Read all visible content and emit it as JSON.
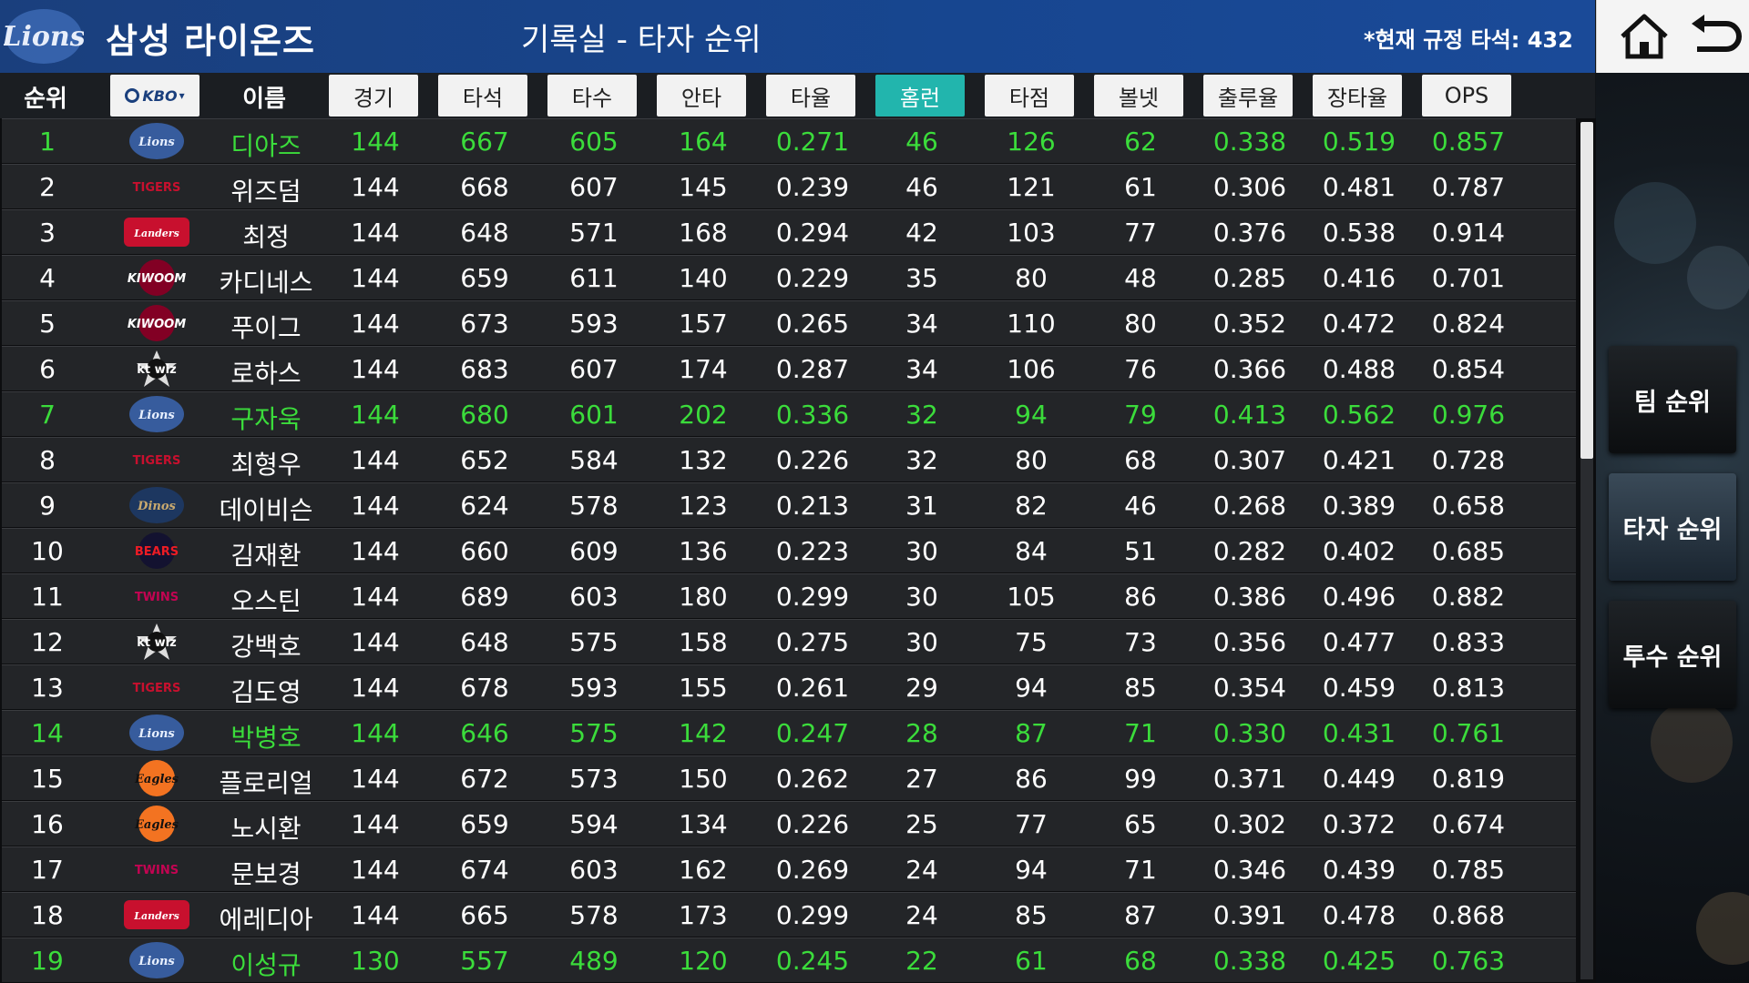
{
  "app": {
    "team_name": "삼성 라이온즈",
    "page_title": "기록실 - 타자 순위",
    "qualify_label": "*현재 규정 타석: 432"
  },
  "nav": {
    "home_icon": "home-icon",
    "back_icon": "back-arrow-icon",
    "side_buttons": [
      "팀 순위",
      "타자 순위",
      "투수 순위"
    ],
    "active_side": "타자 순위"
  },
  "columns": {
    "rank": "순위",
    "team_filter": "KBO",
    "name": "이름",
    "stats": [
      "경기",
      "타석",
      "타수",
      "안타",
      "타율",
      "홈런",
      "타점",
      "볼넷",
      "출루율",
      "장타율",
      "OPS"
    ],
    "active_sort": "홈런"
  },
  "colors": {
    "header_blue": "#1a4a98",
    "active_column": "#22b5ad",
    "own_team_text": "#3bdc3b"
  },
  "rows": [
    {
      "rank": "1",
      "team": "lions",
      "name": "디아즈",
      "games": "144",
      "pa": "667",
      "ab": "605",
      "h": "164",
      "avg": "0.271",
      "hr": "46",
      "rbi": "126",
      "bb": "62",
      "obp": "0.338",
      "slg": "0.519",
      "ops": "0.857",
      "own": true
    },
    {
      "rank": "2",
      "team": "tigers",
      "name": "위즈덤",
      "games": "144",
      "pa": "668",
      "ab": "607",
      "h": "145",
      "avg": "0.239",
      "hr": "46",
      "rbi": "121",
      "bb": "61",
      "obp": "0.306",
      "slg": "0.481",
      "ops": "0.787",
      "own": false
    },
    {
      "rank": "3",
      "team": "landers",
      "name": "최정",
      "games": "144",
      "pa": "648",
      "ab": "571",
      "h": "168",
      "avg": "0.294",
      "hr": "42",
      "rbi": "103",
      "bb": "77",
      "obp": "0.376",
      "slg": "0.538",
      "ops": "0.914",
      "own": false
    },
    {
      "rank": "4",
      "team": "kiwoom",
      "name": "카디네스",
      "games": "144",
      "pa": "659",
      "ab": "611",
      "h": "140",
      "avg": "0.229",
      "hr": "35",
      "rbi": "80",
      "bb": "48",
      "obp": "0.285",
      "slg": "0.416",
      "ops": "0.701",
      "own": false
    },
    {
      "rank": "5",
      "team": "kiwoom",
      "name": "푸이그",
      "games": "144",
      "pa": "673",
      "ab": "593",
      "h": "157",
      "avg": "0.265",
      "hr": "34",
      "rbi": "110",
      "bb": "80",
      "obp": "0.352",
      "slg": "0.472",
      "ops": "0.824",
      "own": false
    },
    {
      "rank": "6",
      "team": "ktwiz",
      "name": "로하스",
      "games": "144",
      "pa": "683",
      "ab": "607",
      "h": "174",
      "avg": "0.287",
      "hr": "34",
      "rbi": "106",
      "bb": "76",
      "obp": "0.366",
      "slg": "0.488",
      "ops": "0.854",
      "own": false
    },
    {
      "rank": "7",
      "team": "lions",
      "name": "구자욱",
      "games": "144",
      "pa": "680",
      "ab": "601",
      "h": "202",
      "avg": "0.336",
      "hr": "32",
      "rbi": "94",
      "bb": "79",
      "obp": "0.413",
      "slg": "0.562",
      "ops": "0.976",
      "own": true
    },
    {
      "rank": "8",
      "team": "tigers",
      "name": "최형우",
      "games": "144",
      "pa": "652",
      "ab": "584",
      "h": "132",
      "avg": "0.226",
      "hr": "32",
      "rbi": "80",
      "bb": "68",
      "obp": "0.307",
      "slg": "0.421",
      "ops": "0.728",
      "own": false
    },
    {
      "rank": "9",
      "team": "dinos",
      "name": "데이비슨",
      "games": "144",
      "pa": "624",
      "ab": "578",
      "h": "123",
      "avg": "0.213",
      "hr": "31",
      "rbi": "82",
      "bb": "46",
      "obp": "0.268",
      "slg": "0.389",
      "ops": "0.658",
      "own": false
    },
    {
      "rank": "10",
      "team": "bears",
      "name": "김재환",
      "games": "144",
      "pa": "660",
      "ab": "609",
      "h": "136",
      "avg": "0.223",
      "hr": "30",
      "rbi": "84",
      "bb": "51",
      "obp": "0.282",
      "slg": "0.402",
      "ops": "0.685",
      "own": false
    },
    {
      "rank": "11",
      "team": "twins",
      "name": "오스틴",
      "games": "144",
      "pa": "689",
      "ab": "603",
      "h": "180",
      "avg": "0.299",
      "hr": "30",
      "rbi": "105",
      "bb": "86",
      "obp": "0.386",
      "slg": "0.496",
      "ops": "0.882",
      "own": false
    },
    {
      "rank": "12",
      "team": "ktwiz",
      "name": "강백호",
      "games": "144",
      "pa": "648",
      "ab": "575",
      "h": "158",
      "avg": "0.275",
      "hr": "30",
      "rbi": "75",
      "bb": "73",
      "obp": "0.356",
      "slg": "0.477",
      "ops": "0.833",
      "own": false
    },
    {
      "rank": "13",
      "team": "tigers",
      "name": "김도영",
      "games": "144",
      "pa": "678",
      "ab": "593",
      "h": "155",
      "avg": "0.261",
      "hr": "29",
      "rbi": "94",
      "bb": "85",
      "obp": "0.354",
      "slg": "0.459",
      "ops": "0.813",
      "own": false
    },
    {
      "rank": "14",
      "team": "lions",
      "name": "박병호",
      "games": "144",
      "pa": "646",
      "ab": "575",
      "h": "142",
      "avg": "0.247",
      "hr": "28",
      "rbi": "87",
      "bb": "71",
      "obp": "0.330",
      "slg": "0.431",
      "ops": "0.761",
      "own": true
    },
    {
      "rank": "15",
      "team": "eagles",
      "name": "플로리얼",
      "games": "144",
      "pa": "672",
      "ab": "573",
      "h": "150",
      "avg": "0.262",
      "hr": "27",
      "rbi": "86",
      "bb": "99",
      "obp": "0.371",
      "slg": "0.449",
      "ops": "0.819",
      "own": false
    },
    {
      "rank": "16",
      "team": "eagles",
      "name": "노시환",
      "games": "144",
      "pa": "659",
      "ab": "594",
      "h": "134",
      "avg": "0.226",
      "hr": "25",
      "rbi": "77",
      "bb": "65",
      "obp": "0.302",
      "slg": "0.372",
      "ops": "0.674",
      "own": false
    },
    {
      "rank": "17",
      "team": "twins",
      "name": "문보경",
      "games": "144",
      "pa": "674",
      "ab": "603",
      "h": "162",
      "avg": "0.269",
      "hr": "24",
      "rbi": "94",
      "bb": "71",
      "obp": "0.346",
      "slg": "0.439",
      "ops": "0.785",
      "own": false
    },
    {
      "rank": "18",
      "team": "landers",
      "name": "에레디아",
      "games": "144",
      "pa": "665",
      "ab": "578",
      "h": "173",
      "avg": "0.299",
      "hr": "24",
      "rbi": "85",
      "bb": "87",
      "obp": "0.391",
      "slg": "0.478",
      "ops": "0.868",
      "own": false
    },
    {
      "rank": "19",
      "team": "lions",
      "name": "이성규",
      "games": "130",
      "pa": "557",
      "ab": "489",
      "h": "120",
      "avg": "0.245",
      "hr": "22",
      "rbi": "61",
      "bb": "68",
      "obp": "0.338",
      "slg": "0.425",
      "ops": "0.763",
      "own": true
    }
  ],
  "team_labels": {
    "lions": "Lions",
    "tigers": "TIGERS",
    "landers": "Landers",
    "kiwoom": "KIWOOM",
    "ktwiz": "kt wiz",
    "dinos": "Dinos",
    "bears": "BEARS",
    "twins": "TWINS",
    "eagles": "Eagles"
  }
}
